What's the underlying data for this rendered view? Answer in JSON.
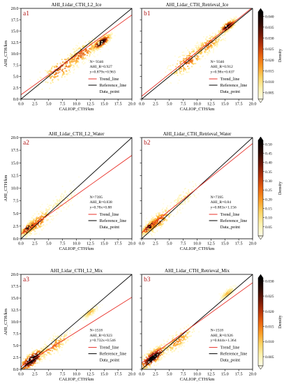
{
  "figure": {
    "colorbar_label": "Density",
    "colorbar_colors": [
      "#fffde8",
      "#fff3b0",
      "#fdd565",
      "#fb9c25",
      "#e8620e",
      "#b3320a",
      "#6e1706",
      "#2a0a03",
      "#000000"
    ]
  },
  "chart_data": [
    {
      "type": "scatter",
      "panel_label": "a1",
      "title": "AHI_Lidar_CTH_L2_Ice",
      "xlabel": "CALIOP_CTH/km",
      "ylabel": "AHI_CTH/km",
      "xlim": [
        0,
        20
      ],
      "ylim": [
        0,
        20
      ],
      "xticks": [
        "0.0",
        "2.5",
        "5.0",
        "7.5",
        "10.0",
        "12.5",
        "15.0",
        "17.5",
        "20.0"
      ],
      "yticks": [
        "0.0",
        "2.5",
        "5.0",
        "7.5",
        "10.0",
        "12.5",
        "15.0",
        "17.5",
        "20.0"
      ],
      "stats": [
        "N= 9346",
        "AHI_R=0.927",
        "y=0.879x+0.963"
      ],
      "trend": {
        "slope": 0.879,
        "intercept": 0.963
      },
      "legend": [
        "Trend_line",
        "Reference_line",
        "Data_point"
      ],
      "density_clusters": [
        {
          "x": 7.5,
          "y": 7.0,
          "spread": 2.2,
          "weight": 0.5
        },
        {
          "x": 14.5,
          "y": 12.5,
          "spread": 0.9,
          "weight": 1.0
        },
        {
          "x": 11.0,
          "y": 10.0,
          "spread": 1.8,
          "weight": 0.5
        }
      ],
      "colorbar": {
        "ticks": [
          "0.005",
          "0.010",
          "0.015",
          "0.020",
          "0.025",
          "0.030",
          "0.035",
          "0.040"
        ],
        "range": [
          0.002,
          0.042
        ]
      }
    },
    {
      "type": "scatter",
      "panel_label": "b1",
      "title": "AHI_Lidar_CTH_Retrieval_Ice",
      "xlabel": "CALIOP_CTH/km",
      "ylabel": "",
      "xlim": [
        0,
        20
      ],
      "ylim": [
        0,
        20
      ],
      "xticks": [
        "0.0",
        "2.5",
        "5.0",
        "7.5",
        "10.0",
        "12.5",
        "15.0",
        "17.5",
        "20.0"
      ],
      "yticks": [],
      "stats": [
        "N= 9346",
        "AHI_R=0.912",
        "y=0.98x+0.637"
      ],
      "trend": {
        "slope": 0.98,
        "intercept": 0.637
      },
      "legend": [
        "Trend_line",
        "Reference_line",
        "Data_point"
      ],
      "density_clusters": [
        {
          "x": 8.5,
          "y": 8.5,
          "spread": 2.0,
          "weight": 0.5
        },
        {
          "x": 15.5,
          "y": 16.0,
          "spread": 0.8,
          "weight": 1.0
        },
        {
          "x": 12.0,
          "y": 12.0,
          "spread": 1.6,
          "weight": 0.45
        }
      ],
      "colorbar": {
        "ticks": [
          "0.005",
          "0.010",
          "0.015",
          "0.020",
          "0.025",
          "0.030",
          "0.035",
          "0.040"
        ],
        "range": [
          0.002,
          0.042
        ]
      }
    },
    {
      "type": "scatter",
      "panel_label": "a2",
      "title": "AHI_Lidar_CTH_L2_Water",
      "xlabel": "CALIOP_CTH/km",
      "ylabel": "AHI_CTH/km",
      "xlim": [
        0,
        20
      ],
      "ylim": [
        0,
        20
      ],
      "xticks": [
        "0.0",
        "2.5",
        "5.0",
        "7.5",
        "10.0",
        "12.5",
        "15.0",
        "17.5",
        "20.0"
      ],
      "yticks": [
        "0.0",
        "2.5",
        "5.0",
        "7.5",
        "10.0",
        "12.5",
        "15.0",
        "17.5",
        "20.0"
      ],
      "stats": [
        "N=7395",
        "AHI_R=0.838",
        "y=0.78x+0.88"
      ],
      "trend": {
        "slope": 0.78,
        "intercept": 0.88
      },
      "legend": [
        "Trend_line",
        "Reference_line",
        "Data_point"
      ],
      "density_clusters": [
        {
          "x": 1.5,
          "y": 2.2,
          "spread": 0.8,
          "weight": 1.0
        },
        {
          "x": 3.0,
          "y": 3.2,
          "spread": 1.5,
          "weight": 0.5
        },
        {
          "x": 7.0,
          "y": 7.0,
          "spread": 1.8,
          "weight": 0.15
        }
      ],
      "colorbar": {
        "ticks": [
          "0.05",
          "0.10",
          "0.15",
          "0.20",
          "0.25",
          "0.30",
          "0.35",
          "0.40",
          "0.45",
          "0.50"
        ],
        "range": [
          0.0,
          0.52
        ]
      }
    },
    {
      "type": "scatter",
      "panel_label": "b2",
      "title": "AHI_Lidar_CTH_Retrieval_Water",
      "xlabel": "CALIOP_CTH/km",
      "ylabel": "",
      "xlim": [
        0,
        20
      ],
      "ylim": [
        0,
        20
      ],
      "xticks": [
        "0.0",
        "2.5",
        "5.0",
        "7.5",
        "10.0",
        "12.5",
        "15.0",
        "17.5",
        "20.0"
      ],
      "yticks": [],
      "stats": [
        "N=7395",
        "AHI_R=0.84",
        "y=0.883x+1.156"
      ],
      "trend": {
        "slope": 0.883,
        "intercept": 1.156
      },
      "legend": [
        "Trend_line",
        "Reference_line",
        "Data_point"
      ],
      "density_clusters": [
        {
          "x": 1.5,
          "y": 2.4,
          "spread": 0.8,
          "weight": 1.0
        },
        {
          "x": 3.0,
          "y": 3.5,
          "spread": 1.5,
          "weight": 0.5
        },
        {
          "x": 7.5,
          "y": 8.0,
          "spread": 1.8,
          "weight": 0.15
        }
      ],
      "colorbar": {
        "ticks": [
          "0.05",
          "0.10",
          "0.15",
          "0.20",
          "0.25",
          "0.30",
          "0.35",
          "0.40",
          "0.45",
          "0.50"
        ],
        "range": [
          0.0,
          0.52
        ]
      }
    },
    {
      "type": "scatter",
      "panel_label": "a3",
      "title": "AHI_Lidar_CTH_L2_Mix",
      "xlabel": "CALIOP_CTH/km",
      "ylabel": "AHI_CTH/km",
      "xlim": [
        0,
        20
      ],
      "ylim": [
        0,
        20
      ],
      "xticks": [
        "0.0",
        "2.5",
        "5.0",
        "7.5",
        "10.0",
        "12.5",
        "15.0",
        "17.5",
        "20.0"
      ],
      "yticks": [
        "0.0",
        "2.5",
        "5.0",
        "7.5",
        "10.0",
        "12.5",
        "15.0",
        "17.5",
        "20.0"
      ],
      "stats": [
        "N=1518",
        "AHI_R=0.923",
        "y=0.732x+0.546"
      ],
      "trend": {
        "slope": 0.732,
        "intercept": 0.546
      },
      "legend": [
        "Trend_line",
        "Reference_line",
        "Data_point"
      ],
      "density_clusters": [
        {
          "x": 2.0,
          "y": 2.0,
          "spread": 1.3,
          "weight": 1.0
        },
        {
          "x": 6.0,
          "y": 5.0,
          "spread": 1.6,
          "weight": 0.4
        },
        {
          "x": 12.5,
          "y": 12.0,
          "spread": 0.7,
          "weight": 0.3
        }
      ],
      "colorbar": {
        "ticks": [
          "0.005",
          "0.010",
          "0.015",
          "0.020",
          "0.025",
          "0.030"
        ],
        "range": [
          0.002,
          0.031
        ]
      }
    },
    {
      "type": "scatter",
      "panel_label": "b3",
      "title": "AHI_Lidar_CTH_Retrieval_Mix",
      "xlabel": "CALIOP_CTH/km",
      "ylabel": "",
      "xlim": [
        0,
        20
      ],
      "ylim": [
        0,
        20
      ],
      "xticks": [
        "0.0",
        "2.5",
        "5.0",
        "7.5",
        "10.0",
        "12.5",
        "15.0",
        "17.5",
        "20.0"
      ],
      "yticks": [],
      "stats": [
        "N=1518",
        "AHI_R=0.926",
        "y=0.844x+1.364"
      ],
      "trend": {
        "slope": 0.844,
        "intercept": 1.364
      },
      "legend": [
        "Trend_line",
        "Reference_line",
        "Data_point"
      ],
      "density_clusters": [
        {
          "x": 2.0,
          "y": 2.5,
          "spread": 1.3,
          "weight": 1.0
        },
        {
          "x": 6.5,
          "y": 6.0,
          "spread": 1.6,
          "weight": 0.4
        },
        {
          "x": 15.5,
          "y": 16.0,
          "spread": 0.7,
          "weight": 0.3
        }
      ],
      "colorbar": {
        "ticks": [
          "0.005",
          "0.010",
          "0.015",
          "0.020",
          "0.025",
          "0.030"
        ],
        "range": [
          0.002,
          0.031
        ]
      }
    }
  ]
}
